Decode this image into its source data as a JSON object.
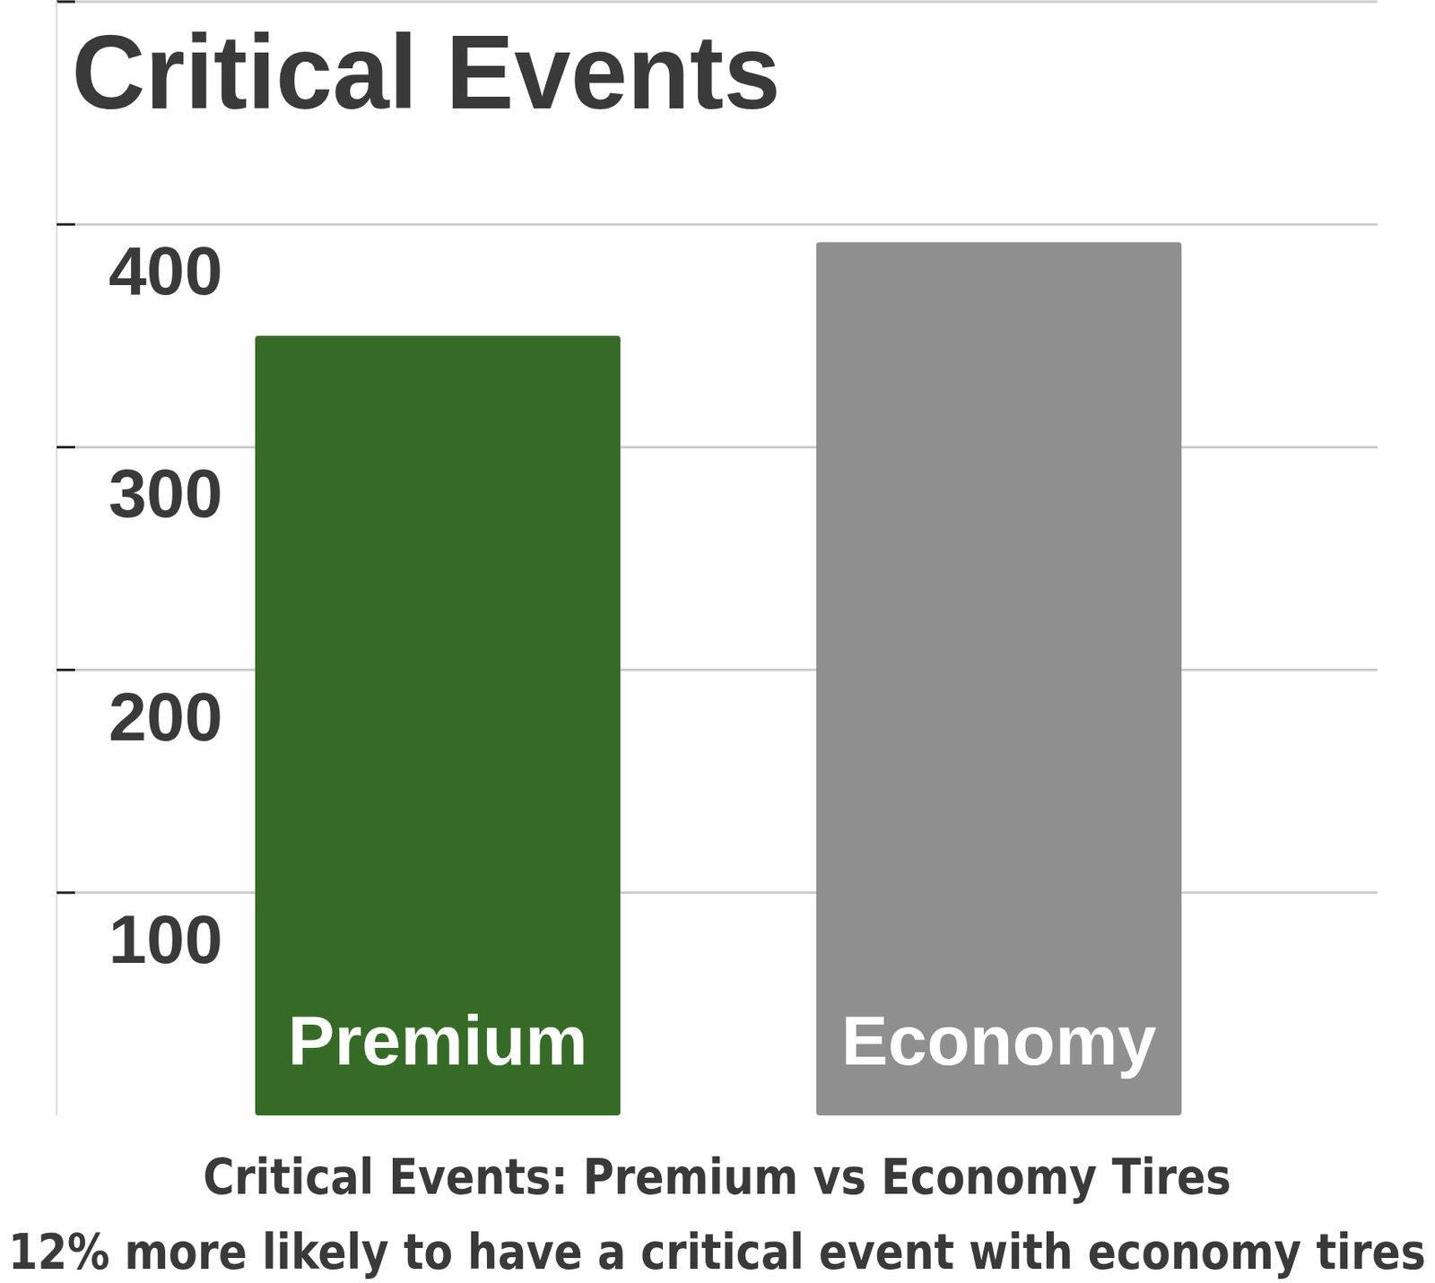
{
  "chart_data": {
    "type": "bar",
    "title": "Critical Events",
    "subtitle": "Critical Events: Premium vs Economy Tires",
    "annotation": "12% more likely to have a critical event with economy tires",
    "categories": [
      "Premium",
      "Economy"
    ],
    "values": [
      350,
      392
    ],
    "colors": [
      "#366b27",
      "#8f8f8f"
    ],
    "ylim": [
      0,
      500
    ],
    "yticks": [
      100,
      200,
      300,
      400
    ],
    "grid": true
  }
}
